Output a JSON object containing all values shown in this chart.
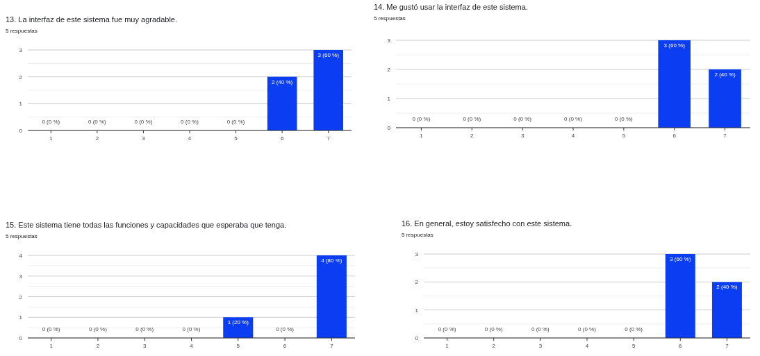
{
  "chart_data": [
    {
      "type": "bar",
      "title": "13.  La interfaz de este sistema fue muy agradable.",
      "subtitle": "5 respuestas",
      "categories": [
        "1",
        "2",
        "3",
        "4",
        "5",
        "6",
        "7"
      ],
      "values": [
        0,
        0,
        0,
        0,
        0,
        2,
        3
      ],
      "value_labels": [
        "0 (0 %)",
        "0 (0 %)",
        "0 (0 %)",
        "0 (0 %)",
        "0 (0 %)",
        "2 (40 %)",
        "3 (60 %)"
      ],
      "color": "#0b3df2",
      "ylim": [
        0,
        3
      ],
      "yticks": [
        0,
        {
          "value": 0.5,
          "label": null
        },
        1,
        {
          "value": 1.5,
          "label": null
        },
        2,
        {
          "value": 2.5,
          "label": null
        },
        3
      ],
      "grid": "y"
    },
    {
      "type": "bar",
      "title": "14.  Me gustó usar la interfaz de este sistema.",
      "subtitle": "5 respuestas",
      "categories": [
        "1",
        "2",
        "3",
        "4",
        "5",
        "6",
        "7"
      ],
      "values": [
        0,
        0,
        0,
        0,
        0,
        3,
        2
      ],
      "value_labels": [
        "0 (0 %)",
        "0 (0 %)",
        "0 (0 %)",
        "0 (0 %)",
        "0 (0 %)",
        "3 (60 %)",
        "2 (40 %)"
      ],
      "color": "#0b3df2",
      "ylim": [
        0,
        3
      ],
      "yticks": [
        0,
        {
          "value": 0.5,
          "label": null
        },
        1,
        {
          "value": 1.5,
          "label": null
        },
        2,
        {
          "value": 2.5,
          "label": null
        },
        3
      ],
      "grid": "y"
    },
    {
      "type": "bar",
      "title": "15.  Este sistema tiene todas las funciones y capacidades que esperaba que tenga.",
      "subtitle": "5 respuestas",
      "categories": [
        "1",
        "2",
        "3",
        "4",
        "5",
        "6",
        "7"
      ],
      "values": [
        0,
        0,
        0,
        0,
        1,
        0,
        4
      ],
      "value_labels": [
        "0 (0 %)",
        "0 (0 %)",
        "0 (0 %)",
        "0 (0 %)",
        "1 (20 %)",
        "0 (0 %)",
        "4 (80 %)"
      ],
      "color": "#0b3df2",
      "ylim": [
        0,
        4
      ],
      "yticks": [
        0,
        {
          "value": 0.5,
          "label": null
        },
        1,
        {
          "value": 1.5,
          "label": null
        },
        2,
        {
          "value": 2.5,
          "label": null
        },
        3,
        {
          "value": 3.5,
          "label": null
        },
        4
      ],
      "grid": "y"
    },
    {
      "type": "bar",
      "title": "16.  En general, estoy satisfecho con este sistema.",
      "subtitle": "5 respuestas",
      "categories": [
        "1",
        "2",
        "3",
        "4",
        "5",
        "6",
        "7"
      ],
      "values": [
        0,
        0,
        0,
        0,
        0,
        3,
        2
      ],
      "value_labels": [
        "0 (0 %)",
        "0 (0 %)",
        "0 (0 %)",
        "0 (0 %)",
        "0 (0 %)",
        "3 (60 %)",
        "2 (40 %)"
      ],
      "color": "#0b3df2",
      "ylim": [
        0,
        3
      ],
      "yticks": [
        0,
        {
          "value": 0.5,
          "label": null
        },
        1,
        {
          "value": 1.5,
          "label": null
        },
        2,
        {
          "value": 2.5,
          "label": null
        },
        3
      ],
      "grid": "y"
    }
  ]
}
